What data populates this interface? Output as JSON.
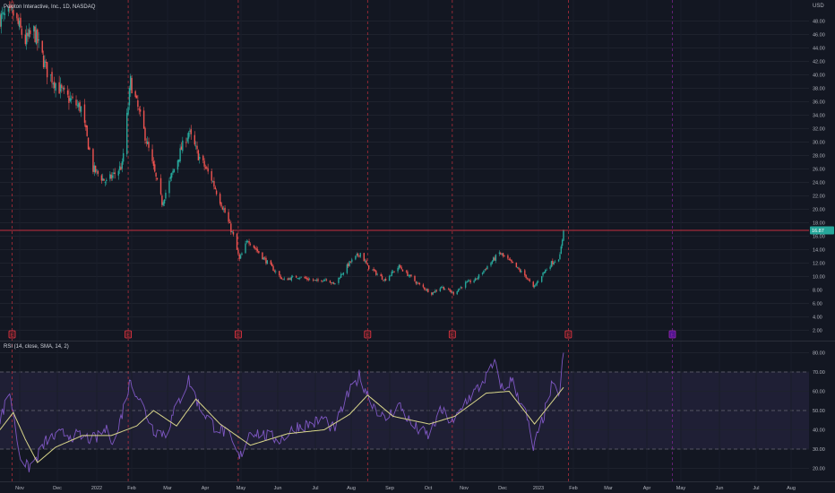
{
  "header": {
    "symbol_line": "Peloton Interactive, Inc., 1D, NASDAQ",
    "currency": "USD"
  },
  "price_axis": {
    "ticks": [
      "48.00",
      "46.00",
      "44.00",
      "42.00",
      "40.00",
      "38.00",
      "36.00",
      "34.00",
      "32.00",
      "30.00",
      "28.00",
      "26.00",
      "24.00",
      "22.00",
      "20.00",
      "18.00",
      "16.00",
      "14.00",
      "12.00",
      "10.00",
      "8.00",
      "6.00",
      "4.00",
      "2.00"
    ],
    "last_price": 16.87,
    "last_price_label": "16.87"
  },
  "rsi": {
    "label": "RSI (14, close, SMA, 14, 2)",
    "ticks": [
      "80.00",
      "70.00",
      "60.00",
      "50.00",
      "40.00",
      "30.00",
      "20.00"
    ],
    "upper_band": 70,
    "mid_band": 50,
    "lower_band": 30
  },
  "time_axis": {
    "labels": [
      "Nov",
      "Dec",
      "2022",
      "Feb",
      "Mar",
      "Apr",
      "May",
      "Jun",
      "Jul",
      "Aug",
      "Sep",
      "Oct",
      "Nov",
      "Dec",
      "2023",
      "Feb",
      "Mar",
      "Apr",
      "May",
      "Jun",
      "Jul",
      "Aug"
    ]
  },
  "events": {
    "earnings_marker": "E",
    "future_marker": "E"
  },
  "colors": {
    "background": "#131722",
    "up": "#26a69a",
    "down": "#ef5350",
    "rsi_line": "#7e57c2",
    "rsi_sma": "#d9d68a",
    "rsi_band": "#7e57c2",
    "price_line": "#f23645",
    "earnings_line": "#f23645",
    "future_line": "#9c27b0"
  },
  "chart_data": {
    "type": "candlestick",
    "title": "Peloton Interactive, Inc., 1D, NASDAQ",
    "price_range": [
      2,
      49
    ],
    "time_range": [
      "2021-10-25",
      "2023-08-25"
    ],
    "price_anchors": [
      {
        "date": "2021-10-28",
        "close": 48.5
      },
      {
        "date": "2021-11-05",
        "close": 49.0
      },
      {
        "date": "2021-11-15",
        "close": 45.0
      },
      {
        "date": "2021-11-22",
        "close": 46.5
      },
      {
        "date": "2021-12-03",
        "close": 40.5
      },
      {
        "date": "2021-12-17",
        "close": 37.0
      },
      {
        "date": "2021-12-31",
        "close": 35.0
      },
      {
        "date": "2022-01-10",
        "close": 26.0
      },
      {
        "date": "2022-01-21",
        "close": 24.0
      },
      {
        "date": "2022-02-03",
        "close": 26.5
      },
      {
        "date": "2022-02-10",
        "close": 39.0
      },
      {
        "date": "2022-02-22",
        "close": 31.0
      },
      {
        "date": "2022-03-08",
        "close": 21.0
      },
      {
        "date": "2022-03-15",
        "close": 24.5
      },
      {
        "date": "2022-03-24",
        "close": 29.0
      },
      {
        "date": "2022-03-30",
        "close": 31.5
      },
      {
        "date": "2022-04-07",
        "close": 28.0
      },
      {
        "date": "2022-04-18",
        "close": 24.5
      },
      {
        "date": "2022-04-29",
        "close": 19.5
      },
      {
        "date": "2022-05-06",
        "close": 16.0
      },
      {
        "date": "2022-05-11",
        "close": 12.5
      },
      {
        "date": "2022-05-18",
        "close": 15.5
      },
      {
        "date": "2022-06-01",
        "close": 12.5
      },
      {
        "date": "2022-06-16",
        "close": 9.5
      },
      {
        "date": "2022-06-28",
        "close": 10.0
      },
      {
        "date": "2022-07-14",
        "close": 9.3
      },
      {
        "date": "2022-07-22",
        "close": 9.7
      },
      {
        "date": "2022-07-28",
        "close": 8.8
      },
      {
        "date": "2022-08-10",
        "close": 12.0
      },
      {
        "date": "2022-08-19",
        "close": 13.5
      },
      {
        "date": "2022-08-25",
        "close": 11.5
      },
      {
        "date": "2022-09-08",
        "close": 9.5
      },
      {
        "date": "2022-09-20",
        "close": 11.5
      },
      {
        "date": "2022-10-05",
        "close": 9.0
      },
      {
        "date": "2022-10-17",
        "close": 7.5
      },
      {
        "date": "2022-10-25",
        "close": 8.5
      },
      {
        "date": "2022-11-04",
        "close": 7.5
      },
      {
        "date": "2022-11-14",
        "close": 9.0
      },
      {
        "date": "2022-11-22",
        "close": 9.5
      },
      {
        "date": "2022-12-02",
        "close": 11.5
      },
      {
        "date": "2022-12-12",
        "close": 13.5
      },
      {
        "date": "2022-12-22",
        "close": 12.0
      },
      {
        "date": "2023-01-03",
        "close": 10.0
      },
      {
        "date": "2023-01-09",
        "close": 8.3
      },
      {
        "date": "2023-01-17",
        "close": 10.5
      },
      {
        "date": "2023-01-24",
        "close": 12.0
      },
      {
        "date": "2023-01-31",
        "close": 13.0
      },
      {
        "date": "2023-02-03",
        "close": 16.87
      }
    ],
    "earnings_dates": [
      "2021-11-04",
      "2022-02-08",
      "2022-05-10",
      "2022-08-25",
      "2022-11-03",
      "2023-02-07"
    ],
    "upcoming_earnings_date": "2023-05-04",
    "rsi_series": {
      "name": "RSI (14, close, SMA, 14, 2)",
      "range": [
        15,
        82
      ],
      "anchors": [
        {
          "date": "2021-10-25",
          "value": 45
        },
        {
          "date": "2021-11-02",
          "value": 60
        },
        {
          "date": "2021-11-10",
          "value": 28
        },
        {
          "date": "2021-11-17",
          "value": 20
        },
        {
          "date": "2021-11-24",
          "value": 25
        },
        {
          "date": "2021-12-03",
          "value": 35
        },
        {
          "date": "2021-12-17",
          "value": 38
        },
        {
          "date": "2022-01-03",
          "value": 36
        },
        {
          "date": "2022-01-12",
          "value": 35
        },
        {
          "date": "2022-01-20",
          "value": 40
        },
        {
          "date": "2022-01-28",
          "value": 34
        },
        {
          "date": "2022-02-10",
          "value": 66
        },
        {
          "date": "2022-02-18",
          "value": 55
        },
        {
          "date": "2022-03-01",
          "value": 40
        },
        {
          "date": "2022-03-11",
          "value": 38
        },
        {
          "date": "2022-03-20",
          "value": 52
        },
        {
          "date": "2022-03-30",
          "value": 66
        },
        {
          "date": "2022-04-08",
          "value": 52
        },
        {
          "date": "2022-04-20",
          "value": 42
        },
        {
          "date": "2022-05-01",
          "value": 38
        },
        {
          "date": "2022-05-11",
          "value": 25
        },
        {
          "date": "2022-05-20",
          "value": 40
        },
        {
          "date": "2022-06-01",
          "value": 37
        },
        {
          "date": "2022-06-14",
          "value": 35
        },
        {
          "date": "2022-06-28",
          "value": 42
        },
        {
          "date": "2022-07-10",
          "value": 43
        },
        {
          "date": "2022-07-20",
          "value": 46
        },
        {
          "date": "2022-07-28",
          "value": 40
        },
        {
          "date": "2022-08-08",
          "value": 57
        },
        {
          "date": "2022-08-18",
          "value": 68
        },
        {
          "date": "2022-08-28",
          "value": 55
        },
        {
          "date": "2022-09-08",
          "value": 45
        },
        {
          "date": "2022-09-20",
          "value": 53
        },
        {
          "date": "2022-10-01",
          "value": 42
        },
        {
          "date": "2022-10-14",
          "value": 37
        },
        {
          "date": "2022-10-25",
          "value": 50
        },
        {
          "date": "2022-11-04",
          "value": 43
        },
        {
          "date": "2022-11-14",
          "value": 55
        },
        {
          "date": "2022-11-25",
          "value": 62
        },
        {
          "date": "2022-12-08",
          "value": 74
        },
        {
          "date": "2022-12-15",
          "value": 60
        },
        {
          "date": "2022-12-22",
          "value": 66
        },
        {
          "date": "2023-01-03",
          "value": 48
        },
        {
          "date": "2023-01-09",
          "value": 30
        },
        {
          "date": "2023-01-17",
          "value": 46
        },
        {
          "date": "2023-01-24",
          "value": 62
        },
        {
          "date": "2023-01-31",
          "value": 60
        },
        {
          "date": "2023-02-03",
          "value": 80
        }
      ]
    },
    "rsi_sma": {
      "name": "RSI-based MA",
      "anchors": [
        {
          "date": "2021-10-25",
          "value": 40
        },
        {
          "date": "2021-11-05",
          "value": 49
        },
        {
          "date": "2021-11-15",
          "value": 35
        },
        {
          "date": "2021-11-25",
          "value": 23
        },
        {
          "date": "2021-12-10",
          "value": 31
        },
        {
          "date": "2022-01-01",
          "value": 37
        },
        {
          "date": "2022-01-25",
          "value": 37
        },
        {
          "date": "2022-02-15",
          "value": 42
        },
        {
          "date": "2022-03-01",
          "value": 50
        },
        {
          "date": "2022-03-20",
          "value": 42
        },
        {
          "date": "2022-04-05",
          "value": 56
        },
        {
          "date": "2022-04-25",
          "value": 43
        },
        {
          "date": "2022-05-20",
          "value": 32
        },
        {
          "date": "2022-06-20",
          "value": 38
        },
        {
          "date": "2022-07-20",
          "value": 40
        },
        {
          "date": "2022-08-10",
          "value": 48
        },
        {
          "date": "2022-08-25",
          "value": 58
        },
        {
          "date": "2022-09-15",
          "value": 47
        },
        {
          "date": "2022-10-15",
          "value": 43
        },
        {
          "date": "2022-11-05",
          "value": 47
        },
        {
          "date": "2022-12-01",
          "value": 59
        },
        {
          "date": "2022-12-20",
          "value": 60
        },
        {
          "date": "2023-01-10",
          "value": 43
        },
        {
          "date": "2023-02-03",
          "value": 62
        }
      ]
    }
  }
}
